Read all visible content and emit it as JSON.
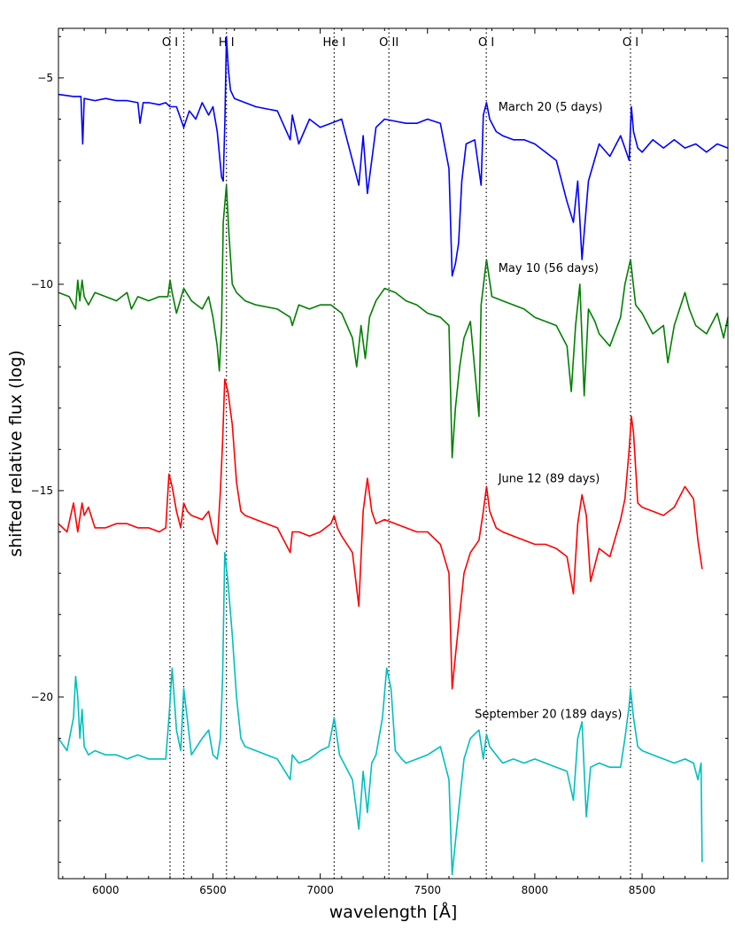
{
  "chart_data": {
    "type": "line",
    "title": "",
    "xlabel": "wavelength [Å]",
    "ylabel": "shifted relative flux (log)",
    "xlim": [
      5780,
      8900
    ],
    "ylim": [
      -24.4,
      -3.8
    ],
    "x_ticks": [
      6000,
      6500,
      7000,
      7500,
      8000,
      8500
    ],
    "y_ticks": [
      -5,
      -10,
      -15,
      -20
    ],
    "grid": false,
    "legend": "none",
    "reference_lines": [
      {
        "x": 6300,
        "label": "O I"
      },
      {
        "x": 6364,
        "label": ""
      },
      {
        "x": 6563,
        "label": "H I"
      },
      {
        "x": 7065,
        "label": "He I"
      },
      {
        "x": 7320,
        "label": "O II"
      },
      {
        "x": 7774,
        "label": "O I"
      },
      {
        "x": 8446,
        "label": "O I"
      }
    ],
    "series": [
      {
        "name": "March 20 (5 days)",
        "color": "#0000ff",
        "x": [
          5780,
          5850,
          5885,
          5893,
          5900,
          5950,
          6000,
          6050,
          6100,
          6150,
          6160,
          6175,
          6200,
          6250,
          6280,
          6300,
          6330,
          6364,
          6390,
          6420,
          6450,
          6480,
          6500,
          6520,
          6540,
          6548,
          6556,
          6563,
          6572,
          6582,
          6600,
          6650,
          6700,
          6750,
          6800,
          6860,
          6870,
          6900,
          6950,
          7000,
          7050,
          7100,
          7150,
          7180,
          7200,
          7220,
          7240,
          7260,
          7300,
          7350,
          7400,
          7450,
          7500,
          7560,
          7600,
          7615,
          7630,
          7645,
          7660,
          7680,
          7720,
          7750,
          7760,
          7775,
          7790,
          7820,
          7850,
          7900,
          7950,
          8000,
          8050,
          8100,
          8150,
          8180,
          8200,
          8220,
          8250,
          8300,
          8350,
          8400,
          8420,
          8440,
          8450,
          8460,
          8480,
          8500,
          8550,
          8600,
          8650,
          8700,
          8750,
          8800,
          8850,
          8900
        ],
        "y": [
          -5.4,
          -5.45,
          -5.45,
          -6.6,
          -5.5,
          -5.55,
          -5.5,
          -5.55,
          -5.55,
          -5.6,
          -6.1,
          -5.6,
          -5.6,
          -5.65,
          -5.6,
          -5.7,
          -5.7,
          -6.2,
          -5.8,
          -6.0,
          -5.6,
          -5.9,
          -5.7,
          -6.3,
          -7.4,
          -7.5,
          -6.0,
          -4.0,
          -4.8,
          -5.3,
          -5.5,
          -5.6,
          -5.7,
          -5.75,
          -5.8,
          -6.5,
          -5.9,
          -6.6,
          -6.0,
          -6.2,
          -6.1,
          -6.0,
          -7.0,
          -7.6,
          -6.4,
          -7.8,
          -7.0,
          -6.2,
          -6.0,
          -6.05,
          -6.1,
          -6.1,
          -6.0,
          -6.1,
          -7.2,
          -9.8,
          -9.5,
          -9.0,
          -7.5,
          -6.6,
          -6.5,
          -7.6,
          -5.9,
          -5.6,
          -6.0,
          -6.3,
          -6.4,
          -6.5,
          -6.5,
          -6.6,
          -6.8,
          -7.0,
          -8.0,
          -8.5,
          -7.5,
          -9.4,
          -7.5,
          -6.6,
          -6.9,
          -6.4,
          -6.7,
          -7.0,
          -5.7,
          -6.3,
          -6.7,
          -6.8,
          -6.5,
          -6.7,
          -6.5,
          -6.7,
          -6.6,
          -6.8,
          -6.6,
          -6.7
        ]
      },
      {
        "name": "May 10 (56 days)",
        "color": "#008000",
        "x": [
          5780,
          5830,
          5860,
          5870,
          5880,
          5890,
          5900,
          5920,
          5950,
          6000,
          6050,
          6100,
          6120,
          6150,
          6200,
          6250,
          6290,
          6300,
          6310,
          6330,
          6364,
          6400,
          6450,
          6480,
          6500,
          6520,
          6530,
          6540,
          6548,
          6563,
          6575,
          6590,
          6610,
          6650,
          6700,
          6800,
          6860,
          6870,
          6900,
          6950,
          7000,
          7050,
          7100,
          7150,
          7170,
          7190,
          7210,
          7230,
          7260,
          7300,
          7350,
          7400,
          7450,
          7500,
          7560,
          7600,
          7615,
          7630,
          7650,
          7670,
          7700,
          7740,
          7750,
          7775,
          7800,
          7850,
          7900,
          7950,
          8000,
          8050,
          8100,
          8150,
          8170,
          8190,
          8210,
          8230,
          8250,
          8280,
          8300,
          8350,
          8400,
          8420,
          8446,
          8470,
          8500,
          8550,
          8600,
          8620,
          8650,
          8700,
          8720,
          8750,
          8800,
          8850,
          8880,
          8900
        ],
        "y": [
          -10.2,
          -10.3,
          -10.6,
          -9.9,
          -10.4,
          -9.9,
          -10.3,
          -10.5,
          -10.2,
          -10.3,
          -10.4,
          -10.2,
          -10.6,
          -10.3,
          -10.4,
          -10.3,
          -10.3,
          -9.9,
          -10.2,
          -10.7,
          -10.1,
          -10.4,
          -10.6,
          -10.3,
          -10.8,
          -11.5,
          -12.1,
          -11.0,
          -8.5,
          -7.6,
          -8.8,
          -10.0,
          -10.2,
          -10.4,
          -10.5,
          -10.6,
          -10.8,
          -11.0,
          -10.5,
          -10.6,
          -10.5,
          -10.5,
          -10.7,
          -11.3,
          -12.0,
          -11.0,
          -11.8,
          -10.8,
          -10.4,
          -10.1,
          -10.2,
          -10.4,
          -10.5,
          -10.7,
          -10.8,
          -11.0,
          -14.2,
          -13.0,
          -12.0,
          -11.3,
          -10.9,
          -13.2,
          -10.5,
          -9.4,
          -10.3,
          -10.4,
          -10.5,
          -10.6,
          -10.8,
          -10.9,
          -11.0,
          -11.5,
          -12.6,
          -11.0,
          -10.0,
          -12.7,
          -10.6,
          -10.9,
          -11.2,
          -11.5,
          -10.8,
          -10.0,
          -9.4,
          -10.5,
          -10.7,
          -11.2,
          -11.0,
          -11.9,
          -11.0,
          -10.2,
          -10.6,
          -11.0,
          -11.2,
          -10.7,
          -11.3,
          -10.8
        ]
      },
      {
        "name": "June 12 (89 days)",
        "color": "#ff0000",
        "x": [
          5780,
          5820,
          5850,
          5870,
          5890,
          5900,
          5920,
          5950,
          6000,
          6050,
          6100,
          6150,
          6200,
          6250,
          6280,
          6295,
          6310,
          6330,
          6350,
          6364,
          6380,
          6400,
          6450,
          6480,
          6500,
          6520,
          6535,
          6545,
          6555,
          6570,
          6590,
          6610,
          6630,
          6650,
          6700,
          6750,
          6800,
          6860,
          6870,
          6900,
          6950,
          7000,
          7050,
          7065,
          7080,
          7100,
          7150,
          7180,
          7200,
          7220,
          7240,
          7260,
          7300,
          7350,
          7400,
          7450,
          7500,
          7560,
          7600,
          7615,
          7630,
          7650,
          7670,
          7700,
          7740,
          7760,
          7775,
          7790,
          7820,
          7850,
          7900,
          7950,
          8000,
          8050,
          8100,
          8150,
          8180,
          8200,
          8220,
          8240,
          8260,
          8300,
          8350,
          8400,
          8420,
          8440,
          8450,
          8460,
          8480,
          8500,
          8550,
          8600,
          8650,
          8700,
          8740,
          8760,
          8780
        ],
        "y": [
          -15.8,
          -16.0,
          -15.3,
          -16.0,
          -15.3,
          -15.6,
          -15.4,
          -15.9,
          -15.9,
          -15.8,
          -15.8,
          -15.9,
          -15.9,
          -16.0,
          -15.9,
          -14.6,
          -14.9,
          -15.5,
          -15.9,
          -15.3,
          -15.5,
          -15.6,
          -15.7,
          -15.5,
          -16.0,
          -16.3,
          -15.0,
          -13.8,
          -12.3,
          -12.6,
          -13.4,
          -14.8,
          -15.5,
          -15.6,
          -15.7,
          -15.8,
          -15.9,
          -16.5,
          -16.0,
          -16.0,
          -16.1,
          -16.0,
          -15.8,
          -15.6,
          -15.9,
          -16.1,
          -16.5,
          -17.8,
          -15.5,
          -14.7,
          -15.5,
          -15.8,
          -15.7,
          -15.8,
          -15.9,
          -16.0,
          -16.0,
          -16.3,
          -17.0,
          -19.8,
          -19.0,
          -18.0,
          -17.0,
          -16.5,
          -16.2,
          -15.5,
          -14.9,
          -15.5,
          -15.9,
          -16.0,
          -16.1,
          -16.2,
          -16.3,
          -16.3,
          -16.4,
          -16.6,
          -17.5,
          -15.8,
          -15.1,
          -15.6,
          -17.2,
          -16.4,
          -16.6,
          -15.7,
          -15.2,
          -14.0,
          -13.2,
          -13.6,
          -15.3,
          -15.4,
          -15.5,
          -15.6,
          -15.4,
          -14.9,
          -15.2,
          -16.2,
          -16.9
        ]
      },
      {
        "name": "September 20 (189 days)",
        "color": "#00bfbf",
        "x": [
          5780,
          5820,
          5850,
          5860,
          5870,
          5880,
          5890,
          5900,
          5920,
          5950,
          6000,
          6050,
          6100,
          6150,
          6200,
          6250,
          6280,
          6295,
          6310,
          6330,
          6350,
          6364,
          6380,
          6400,
          6450,
          6480,
          6500,
          6520,
          6535,
          6545,
          6555,
          6570,
          6590,
          6610,
          6630,
          6650,
          6700,
          6750,
          6800,
          6860,
          6870,
          6900,
          6950,
          7000,
          7040,
          7065,
          7090,
          7100,
          7150,
          7180,
          7200,
          7220,
          7240,
          7260,
          7290,
          7310,
          7330,
          7350,
          7380,
          7400,
          7450,
          7500,
          7560,
          7600,
          7615,
          7630,
          7650,
          7670,
          7700,
          7740,
          7760,
          7775,
          7790,
          7820,
          7850,
          7900,
          7950,
          8000,
          8050,
          8100,
          8150,
          8180,
          8200,
          8220,
          8240,
          8260,
          8300,
          8350,
          8400,
          8420,
          8440,
          8446,
          8460,
          8480,
          8500,
          8550,
          8600,
          8650,
          8700,
          8740,
          8760,
          8775,
          8780
        ],
        "y": [
          -21.0,
          -21.3,
          -20.5,
          -19.5,
          -20.0,
          -21.0,
          -20.3,
          -21.2,
          -21.4,
          -21.3,
          -21.4,
          -21.4,
          -21.5,
          -21.4,
          -21.5,
          -21.5,
          -21.5,
          -20.5,
          -19.3,
          -20.8,
          -21.3,
          -19.8,
          -20.5,
          -21.4,
          -21.0,
          -20.8,
          -21.4,
          -21.5,
          -21.0,
          -19.5,
          -16.5,
          -17.2,
          -18.5,
          -20.0,
          -21.0,
          -21.2,
          -21.3,
          -21.4,
          -21.5,
          -22.0,
          -21.4,
          -21.6,
          -21.5,
          -21.3,
          -21.2,
          -20.5,
          -21.4,
          -21.5,
          -22.0,
          -23.2,
          -21.8,
          -22.8,
          -21.6,
          -21.4,
          -20.5,
          -19.3,
          -19.8,
          -21.3,
          -21.5,
          -21.6,
          -21.5,
          -21.4,
          -21.2,
          -22.0,
          -24.3,
          -23.5,
          -22.5,
          -21.5,
          -21.0,
          -20.8,
          -21.5,
          -20.9,
          -21.2,
          -21.4,
          -21.6,
          -21.5,
          -21.6,
          -21.5,
          -21.6,
          -21.7,
          -21.8,
          -22.5,
          -21.0,
          -20.6,
          -22.9,
          -21.7,
          -21.6,
          -21.7,
          -21.7,
          -21.0,
          -20.2,
          -19.8,
          -20.5,
          -21.2,
          -21.3,
          -21.4,
          -21.5,
          -21.6,
          -21.5,
          -21.6,
          -22.0,
          -21.6,
          -24.0
        ]
      }
    ]
  }
}
